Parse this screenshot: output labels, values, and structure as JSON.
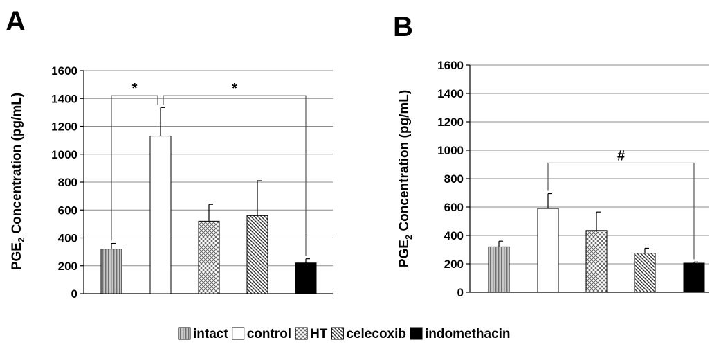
{
  "legend": {
    "items": [
      {
        "label": "intact",
        "fill": "intact"
      },
      {
        "label": "control",
        "fill": "control"
      },
      {
        "label": "HT",
        "fill": "ht"
      },
      {
        "label": "celecoxib",
        "fill": "celecoxib"
      },
      {
        "label": "indomethacin",
        "fill": "indomethacin"
      }
    ]
  },
  "chart_data": [
    {
      "type": "bar",
      "panel_label": "A",
      "ylabel_main": "PGE",
      "ylabel_sub": "2",
      "ylabel_rest": " Concentration (pg/mL)",
      "ylim": [
        0,
        1600
      ],
      "yticks": [
        0,
        200,
        400,
        600,
        800,
        1000,
        1200,
        1400,
        1600
      ],
      "grid": true,
      "categories": [
        "intact",
        "control",
        "HT",
        "celecoxib",
        "indomethacin"
      ],
      "values": [
        320,
        1130,
        520,
        560,
        220
      ],
      "errors": [
        40,
        205,
        120,
        250,
        30
      ],
      "significance": [
        {
          "from": 0,
          "to": 1,
          "label": "*",
          "y": 1420
        },
        {
          "from": 1,
          "to": 4,
          "label": "*",
          "y": 1420
        }
      ]
    },
    {
      "type": "bar",
      "panel_label": "B",
      "ylabel_main": "PGE",
      "ylabel_sub": "2",
      "ylabel_rest": " Concentration (pg/mL)",
      "ylim": [
        0,
        1600
      ],
      "yticks": [
        0,
        200,
        400,
        600,
        800,
        1000,
        1200,
        1400,
        1600
      ],
      "grid": true,
      "categories": [
        "intact",
        "control",
        "HT",
        "celecoxib",
        "indomethacin"
      ],
      "values": [
        320,
        590,
        435,
        275,
        205
      ],
      "errors": [
        40,
        105,
        130,
        35,
        8
      ],
      "significance": [
        {
          "from": 1,
          "to": 4,
          "label": "#",
          "y": 910
        }
      ]
    }
  ]
}
